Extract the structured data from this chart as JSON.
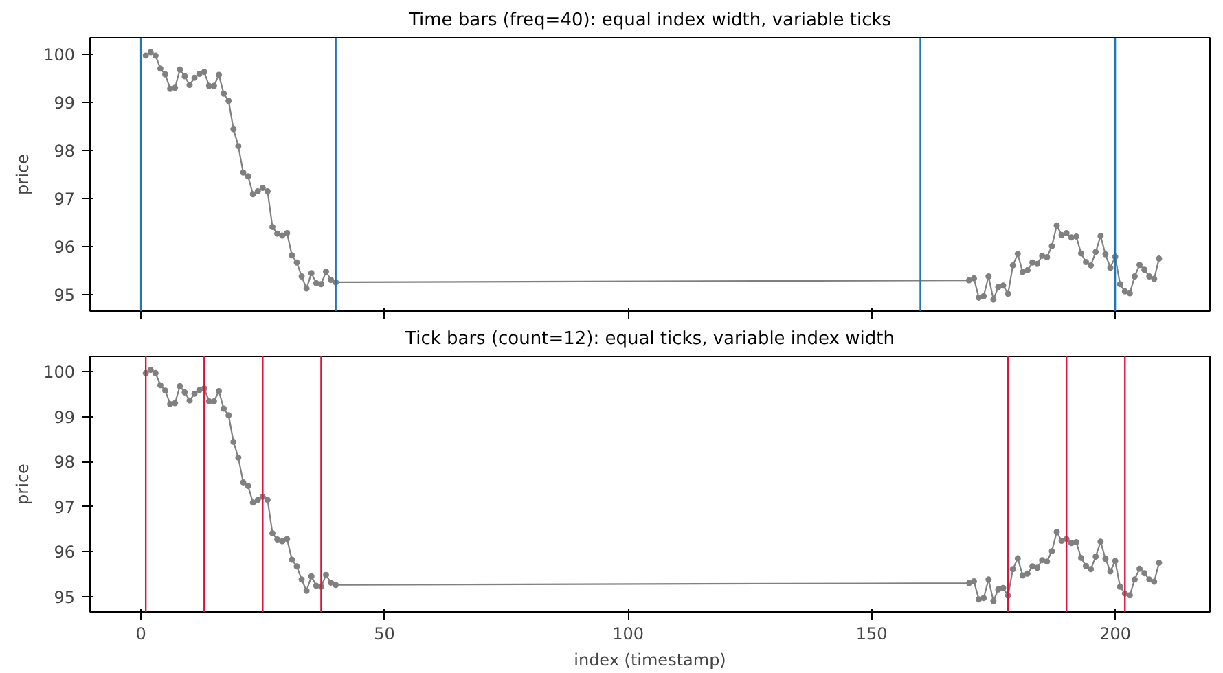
{
  "chart_data": [
    {
      "type": "line",
      "title": "Time bars (freq=40): equal index width, variable ticks",
      "ylabel": "price",
      "xlim": [
        -10.45,
        219.45
      ],
      "xticks": [
        0,
        50,
        100,
        150,
        200
      ],
      "ylim": [
        94.66,
        100.34
      ],
      "yticks": [
        95,
        96,
        97,
        98,
        99,
        100
      ],
      "tick_labels": "y",
      "grid": false,
      "marker": "circle",
      "line_style": "solid",
      "x": [
        1,
        2,
        3,
        4,
        5,
        6,
        7,
        8,
        9,
        10,
        11,
        12,
        13,
        14,
        15,
        16,
        17,
        18,
        19,
        20,
        21,
        22,
        23,
        24,
        25,
        26,
        27,
        28,
        29,
        30,
        31,
        32,
        33,
        34,
        35,
        36,
        37,
        38,
        39,
        40,
        170,
        171,
        172,
        173,
        174,
        175,
        176,
        177,
        178,
        179,
        180,
        181,
        182,
        183,
        184,
        185,
        186,
        187,
        188,
        189,
        190,
        191,
        192,
        193,
        194,
        195,
        196,
        197,
        198,
        199,
        200,
        201,
        202,
        203,
        204,
        205,
        206,
        207,
        208,
        209
      ],
      "series": [
        {
          "color": "#808080",
          "values": [
            99.97,
            100.04,
            99.97,
            99.7,
            99.58,
            99.28,
            99.3,
            99.68,
            99.54,
            99.36,
            99.51,
            99.59,
            99.63,
            99.34,
            99.34,
            99.57,
            99.18,
            99.03,
            98.44,
            98.09,
            97.54,
            97.46,
            97.09,
            97.15,
            97.22,
            97.15,
            96.41,
            96.27,
            96.23,
            96.28,
            95.82,
            95.67,
            95.38,
            95.13,
            95.45,
            95.24,
            95.22,
            95.48,
            95.31,
            95.26,
            95.3,
            95.34,
            94.94,
            94.97,
            95.38,
            94.9,
            95.16,
            95.19,
            95.02,
            95.61,
            95.85,
            95.47,
            95.51,
            95.67,
            95.64,
            95.81,
            95.78,
            96.01,
            96.44,
            96.24,
            96.28,
            96.19,
            96.21,
            95.86,
            95.68,
            95.61,
            95.89,
            96.22,
            95.84,
            95.56,
            95.79,
            95.22,
            95.07,
            95.03,
            95.38,
            95.62,
            95.52,
            95.38,
            95.33,
            95.75
          ]
        }
      ],
      "ref_lines": [
        {
          "axis": "x",
          "value": 0,
          "color": "#1f77b4"
        },
        {
          "axis": "x",
          "value": 40,
          "color": "#1f77b4"
        },
        {
          "axis": "x",
          "value": 160,
          "color": "#1f77b4"
        },
        {
          "axis": "x",
          "value": 200,
          "color": "#1f77b4"
        }
      ]
    },
    {
      "type": "line",
      "title": "Tick bars (count=12): equal ticks, variable index width",
      "xlabel": "index (timestamp)",
      "ylabel": "price",
      "xlim": [
        -10.45,
        219.45
      ],
      "xticks": [
        0,
        50,
        100,
        150,
        200
      ],
      "ylim": [
        94.66,
        100.34
      ],
      "yticks": [
        95,
        96,
        97,
        98,
        99,
        100
      ],
      "grid": false,
      "marker": "circle",
      "line_style": "solid",
      "x": [
        1,
        2,
        3,
        4,
        5,
        6,
        7,
        8,
        9,
        10,
        11,
        12,
        13,
        14,
        15,
        16,
        17,
        18,
        19,
        20,
        21,
        22,
        23,
        24,
        25,
        26,
        27,
        28,
        29,
        30,
        31,
        32,
        33,
        34,
        35,
        36,
        37,
        38,
        39,
        40,
        170,
        171,
        172,
        173,
        174,
        175,
        176,
        177,
        178,
        179,
        180,
        181,
        182,
        183,
        184,
        185,
        186,
        187,
        188,
        189,
        190,
        191,
        192,
        193,
        194,
        195,
        196,
        197,
        198,
        199,
        200,
        201,
        202,
        203,
        204,
        205,
        206,
        207,
        208,
        209
      ],
      "series": [
        {
          "color": "#808080",
          "values": [
            99.97,
            100.04,
            99.97,
            99.7,
            99.58,
            99.28,
            99.3,
            99.68,
            99.54,
            99.36,
            99.51,
            99.59,
            99.63,
            99.34,
            99.34,
            99.57,
            99.18,
            99.03,
            98.44,
            98.09,
            97.54,
            97.46,
            97.09,
            97.15,
            97.22,
            97.15,
            96.41,
            96.27,
            96.23,
            96.28,
            95.82,
            95.67,
            95.38,
            95.13,
            95.45,
            95.24,
            95.22,
            95.48,
            95.31,
            95.26,
            95.3,
            95.34,
            94.94,
            94.97,
            95.38,
            94.9,
            95.16,
            95.19,
            95.02,
            95.61,
            95.85,
            95.47,
            95.51,
            95.67,
            95.64,
            95.81,
            95.78,
            96.01,
            96.44,
            96.24,
            96.28,
            96.19,
            96.21,
            95.86,
            95.68,
            95.61,
            95.89,
            96.22,
            95.84,
            95.56,
            95.79,
            95.22,
            95.07,
            95.03,
            95.38,
            95.62,
            95.52,
            95.38,
            95.33,
            95.75
          ]
        }
      ],
      "ref_lines": [
        {
          "axis": "x",
          "value": 1,
          "color": "#dc143c"
        },
        {
          "axis": "x",
          "value": 13,
          "color": "#dc143c"
        },
        {
          "axis": "x",
          "value": 25,
          "color": "#dc143c"
        },
        {
          "axis": "x",
          "value": 37,
          "color": "#dc143c"
        },
        {
          "axis": "x",
          "value": 178,
          "color": "#dc143c"
        },
        {
          "axis": "x",
          "value": 190,
          "color": "#dc143c"
        },
        {
          "axis": "x",
          "value": 202,
          "color": "#dc143c"
        }
      ]
    }
  ]
}
